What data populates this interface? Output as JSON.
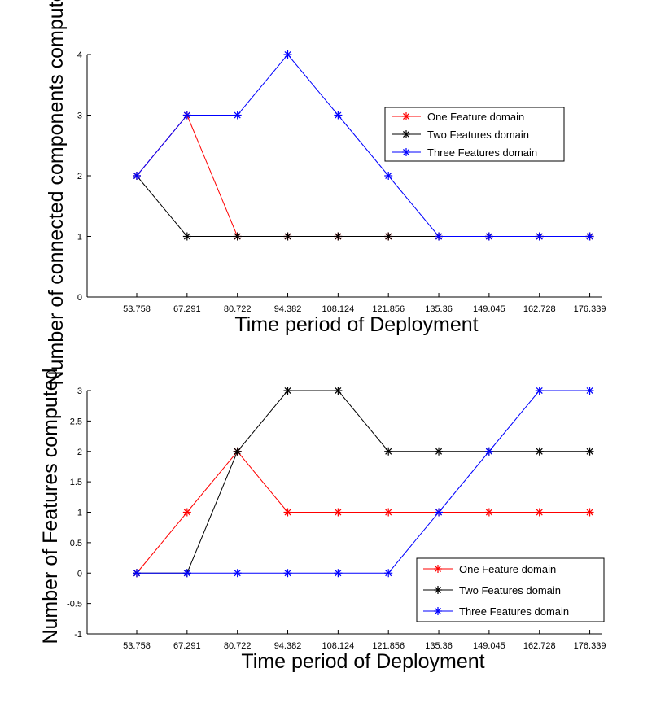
{
  "chart_data": [
    {
      "type": "line",
      "xlabel": "Time period of Deployment",
      "ylabel": "Number of connected components computed",
      "x": [
        "53.758",
        "67.291",
        "80.722",
        "94.382",
        "108.124",
        "121.856",
        "135.36",
        "149.045",
        "162.728",
        "176.339"
      ],
      "ylim": [
        0,
        4
      ],
      "yticks": [
        "0",
        "1",
        "2",
        "3",
        "4"
      ],
      "legend_position": "upper-right",
      "series": [
        {
          "name": "One Feature domain",
          "color": "#ff0000",
          "values": [
            2,
            3,
            1,
            1,
            1,
            1,
            1,
            1,
            1,
            1
          ]
        },
        {
          "name": "Two Features domain",
          "color": "#000000",
          "values": [
            2,
            1,
            1,
            1,
            1,
            1,
            1,
            1,
            1,
            1
          ]
        },
        {
          "name": "Three Features domain",
          "color": "#0000ff",
          "values": [
            2,
            3,
            3,
            4,
            3,
            2,
            1,
            1,
            1,
            1
          ]
        }
      ]
    },
    {
      "type": "line",
      "xlabel": "Time period of Deployment",
      "ylabel": "Number of Features computed",
      "x": [
        "53.758",
        "67.291",
        "80.722",
        "94.382",
        "108.124",
        "121.856",
        "135.36",
        "149.045",
        "162.728",
        "176.339"
      ],
      "ylim": [
        -1,
        3
      ],
      "yticks": [
        "-1",
        "-0.5",
        "0",
        "0.5",
        "1",
        "1.5",
        "2",
        "2.5",
        "3"
      ],
      "legend_position": "lower-right",
      "series": [
        {
          "name": "One Feature domain",
          "color": "#ff0000",
          "values": [
            0,
            1,
            2,
            1,
            1,
            1,
            1,
            1,
            1,
            1
          ]
        },
        {
          "name": "Two Features domain",
          "color": "#000000",
          "values": [
            0,
            0,
            2,
            3,
            3,
            2,
            2,
            2,
            2,
            2
          ]
        },
        {
          "name": "Three Features domain",
          "color": "#0000ff",
          "values": [
            0,
            0,
            0,
            0,
            0,
            0,
            1,
            2,
            3,
            3
          ]
        }
      ]
    }
  ]
}
